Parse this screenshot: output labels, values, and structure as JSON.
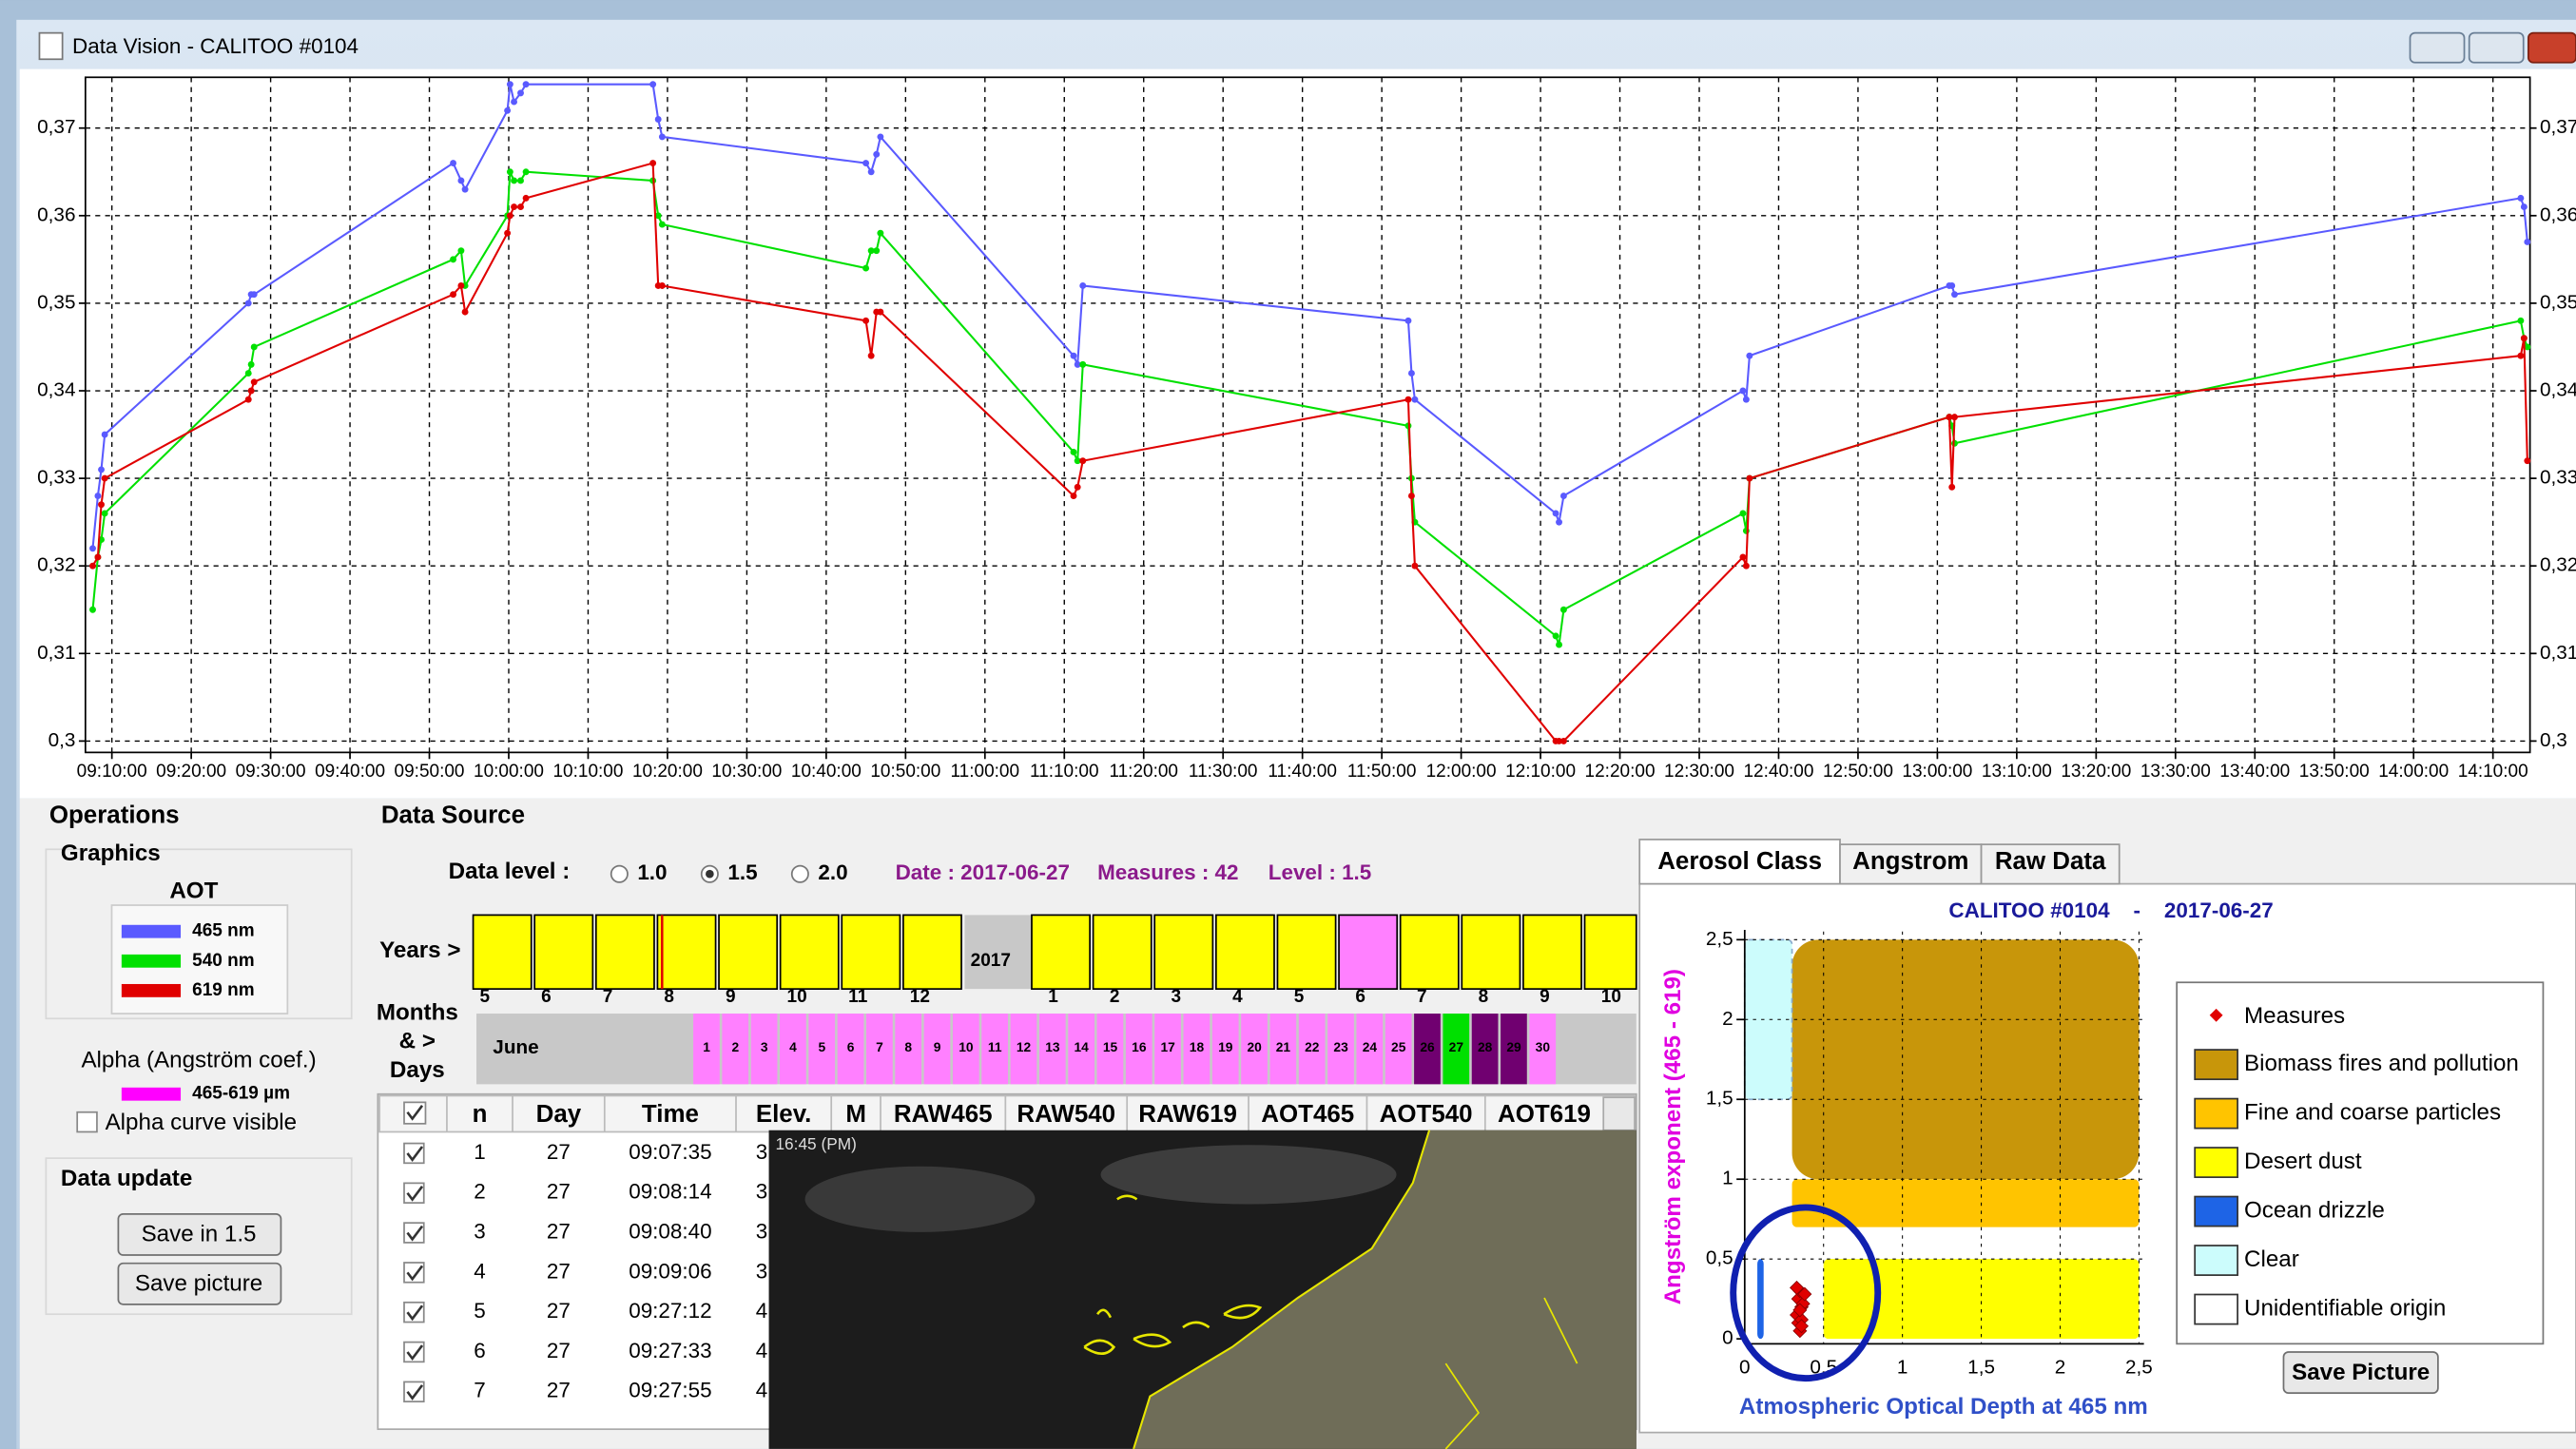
{
  "window": {
    "title": "Data Vision - CALITOO #0104"
  },
  "chart_data": [
    {
      "type": "line",
      "x": [
        "09:07:35",
        "09:08:14",
        "09:08:40",
        "09:09:06",
        "09:27:12",
        "09:27:33",
        "09:27:55",
        "09:53:00",
        "09:54:00",
        "09:54:30",
        "09:59:50",
        "10:00:10",
        "10:00:40",
        "10:01:30",
        "10:02:10",
        "10:18:10",
        "10:18:50",
        "10:19:20",
        "10:45:00",
        "10:45:40",
        "10:46:20",
        "10:46:50",
        "11:11:10",
        "11:11:40",
        "11:12:20",
        "11:53:20",
        "11:53:45",
        "11:54:10",
        "12:11:55",
        "12:12:20",
        "12:12:55",
        "12:35:30",
        "12:35:55",
        "12:36:20",
        "13:01:30",
        "13:01:50",
        "13:02:10",
        "14:13:30",
        "14:13:55",
        "14:14:20"
      ],
      "series": [
        {
          "name": "465 nm",
          "color": "#5a5aff",
          "values": [
            0.322,
            0.328,
            0.331,
            0.335,
            0.35,
            0.351,
            0.351,
            0.366,
            0.364,
            0.363,
            0.372,
            0.375,
            0.373,
            0.374,
            0.375,
            0.375,
            0.371,
            0.369,
            0.366,
            0.365,
            0.367,
            0.369,
            0.344,
            0.343,
            0.352,
            0.348,
            0.342,
            0.339,
            0.326,
            0.325,
            0.328,
            0.34,
            0.339,
            0.344,
            0.352,
            0.352,
            0.351,
            0.362,
            0.361,
            0.357
          ]
        },
        {
          "name": "540 nm",
          "color": "#00e000",
          "values": [
            0.315,
            0.321,
            0.323,
            0.326,
            0.342,
            0.343,
            0.345,
            0.355,
            0.356,
            0.352,
            0.36,
            0.365,
            0.364,
            0.364,
            0.365,
            0.364,
            0.36,
            0.359,
            0.354,
            0.356,
            0.356,
            0.358,
            0.333,
            0.332,
            0.343,
            0.336,
            0.33,
            0.325,
            0.312,
            0.311,
            0.315,
            0.326,
            0.324,
            0.33,
            0.337,
            0.336,
            0.334,
            0.348,
            0.346,
            0.345
          ]
        },
        {
          "name": "619 nm",
          "color": "#e00000",
          "values": [
            0.32,
            0.321,
            0.327,
            0.33,
            0.339,
            0.34,
            0.341,
            0.351,
            0.352,
            0.349,
            0.358,
            0.36,
            0.361,
            0.361,
            0.362,
            0.366,
            0.352,
            0.352,
            0.348,
            0.344,
            0.349,
            0.349,
            0.328,
            0.329,
            0.332,
            0.339,
            0.328,
            0.32,
            0.3,
            0.3,
            0.3,
            0.321,
            0.32,
            0.33,
            0.337,
            0.329,
            0.337,
            0.344,
            0.346,
            0.332
          ]
        }
      ],
      "xlim": [
        "09:06:40",
        "14:14:40"
      ],
      "xticks": [
        "09:10:00",
        "09:20:00",
        "09:30:00",
        "09:40:00",
        "09:50:00",
        "10:00:00",
        "10:10:00",
        "10:20:00",
        "10:30:00",
        "10:40:00",
        "10:50:00",
        "11:00:00",
        "11:10:00",
        "11:20:00",
        "11:30:00",
        "11:40:00",
        "11:50:00",
        "12:00:00",
        "12:10:00",
        "12:20:00",
        "12:30:00",
        "12:40:00",
        "12:50:00",
        "13:00:00",
        "13:10:00",
        "13:20:00",
        "13:30:00",
        "13:40:00",
        "13:50:00",
        "14:00:00",
        "14:10:00"
      ],
      "ylim": [
        0.2987,
        0.3758
      ],
      "yticks": [
        {
          "value": 0.3,
          "label": "0,3"
        },
        {
          "value": 0.31,
          "label": "0,31"
        },
        {
          "value": 0.32,
          "label": "0,32"
        },
        {
          "value": 0.33,
          "label": "0,33"
        },
        {
          "value": 0.34,
          "label": "0,34"
        },
        {
          "value": 0.35,
          "label": "0,35"
        },
        {
          "value": 0.36,
          "label": "0,36"
        },
        {
          "value": 0.37,
          "label": "0,37"
        }
      ],
      "grid": true,
      "legend_title": "AOT"
    },
    {
      "type": "scatter",
      "title": "CALITOO #0104    -    2017-06-27",
      "x_label": "Atmospheric Optical Depth at 465 nm",
      "y_label": "Angström exponent (465 - 619)",
      "series": [
        {
          "name": "Measures",
          "color": "#e00000",
          "x": [
            0.33,
            0.34,
            0.35,
            0.36,
            0.34,
            0.37,
            0.35,
            0.36,
            0.33,
            0.35,
            0.38,
            0.36
          ],
          "values": [
            0.15,
            0.25,
            0.3,
            0.2,
            0.1,
            0.22,
            0.05,
            0.12,
            0.32,
            0.18,
            0.28,
            0.08
          ]
        }
      ],
      "regions": [
        {
          "name": "Biomass fires and pollution",
          "color": "#c8960a",
          "x": [
            0.3,
            2.5
          ],
          "y": [
            1.0,
            2.5
          ]
        },
        {
          "name": "Fine and coarse particles",
          "color": "#ffc400",
          "x": [
            0.3,
            2.5
          ],
          "y": [
            0.7,
            1.0
          ]
        },
        {
          "name": "Desert dust",
          "color": "#ffff00",
          "x": [
            0.5,
            2.5
          ],
          "y": [
            0,
            0.5
          ]
        },
        {
          "name": "Ocean drizzle",
          "color": "#1e64e6",
          "x": [
            0.08,
            0.12
          ],
          "y": [
            0,
            0.5
          ]
        },
        {
          "name": "Clear",
          "color": "#ccfcfc",
          "x": [
            0,
            0.3
          ],
          "y": [
            1.5,
            2.5
          ]
        },
        {
          "name": "Unidentifiable origin",
          "color": "#ffffff"
        }
      ],
      "xlim": [
        0,
        2.5
      ],
      "ylim": [
        0,
        2.5
      ],
      "xticks": [
        0,
        {
          "value": 0.5,
          "label": "0,5"
        },
        1,
        {
          "value": 1.5,
          "label": "1,5"
        },
        2,
        {
          "value": 2.5,
          "label": "2,5"
        }
      ],
      "yticks": [
        0,
        {
          "value": 0.5,
          "label": "0,5"
        },
        1,
        {
          "value": 1.5,
          "label": "1,5"
        },
        2,
        {
          "value": 2.5,
          "label": "2,5"
        }
      ],
      "grid": true
    }
  ],
  "operations": {
    "title": "Operations",
    "graphics": "Graphics",
    "alpha_title": "Alpha (Angström coef.)",
    "alpha_legend": "465-619 µm",
    "alpha_color": "#ff00ff",
    "alpha_checkbox": "Alpha curve visible",
    "data_update": "Data update",
    "buttons": [
      "Save in 1.5",
      "Save picture"
    ]
  },
  "data_source": {
    "title": "Data Source",
    "level_label": "Data level :",
    "levels": [
      "1.0",
      "1.5",
      "2.0"
    ],
    "status": [
      "Date : 2017-06-27",
      "Measures : 42",
      "Level : 1.5"
    ],
    "years_label": "Years >",
    "year": "2017",
    "months_before": [
      5,
      6,
      7,
      8,
      9,
      10,
      11,
      12
    ],
    "months_after": [
      1,
      2,
      3,
      4,
      5,
      6,
      7,
      8,
      9,
      10
    ],
    "months_after_colors": [
      "#ffff00",
      "#ffff00",
      "#ffff00",
      "#ffff00",
      "#ffff00",
      "#ff80ff",
      "#ffff00",
      "#ffff00",
      "#ffff00",
      "#ffff00"
    ],
    "days_label": [
      "Months",
      "& >",
      "Days"
    ],
    "month_name": "June",
    "days": [
      1,
      2,
      3,
      4,
      5,
      6,
      7,
      8,
      9,
      10,
      11,
      12,
      13,
      14,
      15,
      16,
      17,
      18,
      19,
      20,
      21,
      22,
      23,
      24,
      25,
      26,
      27,
      28,
      29,
      30
    ],
    "day_colors": [
      "#ff80ff",
      "#ff80ff",
      "#ff80ff",
      "#ff80ff",
      "#ff80ff",
      "#ff80ff",
      "#ff80ff",
      "#ff80ff",
      "#ff80ff",
      "#ff80ff",
      "#ff80ff",
      "#ff80ff",
      "#ff80ff",
      "#ff80ff",
      "#ff80ff",
      "#ff80ff",
      "#ff80ff",
      "#ff80ff",
      "#ff80ff",
      "#ff80ff",
      "#ff80ff",
      "#ff80ff",
      "#ff80ff",
      "#ff80ff",
      "#ff80ff",
      "#700070",
      "#00e000",
      "#700070",
      "#700070",
      "#ff80ff"
    ]
  },
  "table": {
    "headers": [
      "n",
      "Day",
      "Time",
      "Elev.",
      "M",
      "RAW465",
      "RAW540",
      "RAW619",
      "AOT465",
      "AOT540",
      "AOT619"
    ],
    "rows": [
      [
        1,
        27,
        "09:07:35",
        "3"
      ],
      [
        2,
        27,
        "09:08:14",
        "3"
      ],
      [
        3,
        27,
        "09:08:40",
        "3"
      ],
      [
        4,
        27,
        "09:09:06",
        "3"
      ],
      [
        5,
        27,
        "09:27:12",
        "4"
      ],
      [
        6,
        27,
        "09:27:33",
        "4"
      ],
      [
        7,
        27,
        "09:27:55",
        "4"
      ]
    ]
  },
  "satellite": {
    "timestamp": "16:45 (PM)"
  },
  "aerosol_panel": {
    "tabs": [
      "Aerosol Class",
      "Angstrom",
      "Raw Data"
    ],
    "button": "Save Picture"
  }
}
